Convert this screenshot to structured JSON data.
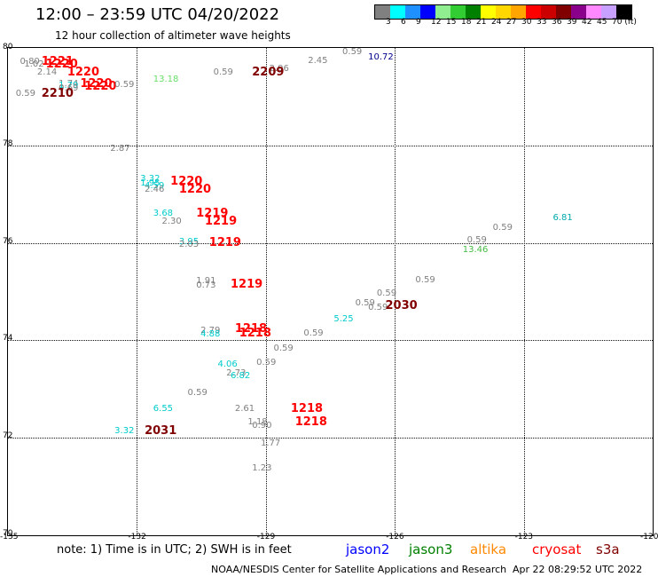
{
  "header": {
    "title": "12:00 – 23:59 UTC 04/20/2022",
    "subtitle": "12 hour collection of altimeter wave heights"
  },
  "color_scale": {
    "swatches": [
      "#808080",
      "#00ffff",
      "#1e90ff",
      "#0000ff",
      "#90ee90",
      "#32cd32",
      "#008000",
      "#ffff00",
      "#ffd700",
      "#ffa500",
      "#ff0000",
      "#cc0000",
      "#800000",
      "#8b008b",
      "#ff88ff",
      "#c8a0ff",
      "#000000"
    ],
    "tick_labels": [
      "3",
      "6",
      "9",
      "12",
      "15",
      "18",
      "21",
      "24",
      "27",
      "30",
      "33",
      "36",
      "39",
      "42",
      "45",
      "70 (ft)"
    ]
  },
  "axes": {
    "lat_labels": [
      "80",
      "78",
      "76",
      "74",
      "72",
      "70"
    ],
    "lon_labels": [
      "-135",
      "-132",
      "-129",
      "-126",
      "-123",
      "-120"
    ]
  },
  "observations": [
    {
      "text": "0.59",
      "color": "#808080",
      "lon": -127.2,
      "lat": 79.89
    },
    {
      "text": "10.72",
      "color": "#00008b",
      "lon": -126.6,
      "lat": 79.79
    },
    {
      "text": "2.45",
      "color": "#808080",
      "lon": -128.0,
      "lat": 79.7
    },
    {
      "text": "1221",
      "color": "#ff0000",
      "lon": -134.2,
      "lat": 79.69,
      "time": true
    },
    {
      "text": "1220",
      "color": "#ff0000",
      "lon": -134.1,
      "lat": 79.63,
      "time": true
    },
    {
      "text": "0.80",
      "color": "#808080",
      "lon": -134.7,
      "lat": 79.69
    },
    {
      "text": "1.02",
      "color": "#808080",
      "lon": -134.6,
      "lat": 79.63
    },
    {
      "text": "2.96",
      "color": "#808080",
      "lon": -128.9,
      "lat": 79.55
    },
    {
      "text": "2209",
      "color": "#800000",
      "lon": -129.3,
      "lat": 79.48,
      "time": true
    },
    {
      "text": "0.59",
      "color": "#808080",
      "lon": -130.2,
      "lat": 79.48
    },
    {
      "text": "2.14",
      "color": "#808080",
      "lon": -134.3,
      "lat": 79.47
    },
    {
      "text": "1220",
      "color": "#ff0000",
      "lon": -133.6,
      "lat": 79.47,
      "time": true
    },
    {
      "text": "13.18",
      "color": "#66dd66",
      "lon": -131.6,
      "lat": 79.32
    },
    {
      "text": "1.74",
      "color": "#808080",
      "lon": -133.8,
      "lat": 79.23
    },
    {
      "text": "1.79",
      "color": "#00cccc",
      "lon": -133.8,
      "lat": 79.19
    },
    {
      "text": "1220",
      "color": "#ff0000",
      "lon": -133.3,
      "lat": 79.23,
      "time": true
    },
    {
      "text": "1220",
      "color": "#ff0000",
      "lon": -133.2,
      "lat": 79.18,
      "time": true
    },
    {
      "text": "0.59",
      "color": "#808080",
      "lon": -132.5,
      "lat": 79.22
    },
    {
      "text": "0.69",
      "color": "#808080",
      "lon": -133.8,
      "lat": 79.14
    },
    {
      "text": "0.59",
      "color": "#808080",
      "lon": -134.8,
      "lat": 79.03
    },
    {
      "text": "2210",
      "color": "#800000",
      "lon": -134.2,
      "lat": 79.03,
      "time": true
    },
    {
      "text": "2.87",
      "color": "#808080",
      "lon": -132.6,
      "lat": 77.9
    },
    {
      "text": "3.32",
      "color": "#00cccc",
      "lon": -131.9,
      "lat": 77.28
    },
    {
      "text": "1.95",
      "color": "#00cccc",
      "lon": -131.9,
      "lat": 77.2
    },
    {
      "text": "4.59",
      "color": "#00cccc",
      "lon": -131.8,
      "lat": 77.14
    },
    {
      "text": "2.46",
      "color": "#808080",
      "lon": -131.8,
      "lat": 77.07
    },
    {
      "text": "1220",
      "color": "#ff0000",
      "lon": -131.2,
      "lat": 77.23,
      "time": true
    },
    {
      "text": "1220",
      "color": "#ff0000",
      "lon": -131.0,
      "lat": 77.07,
      "time": true
    },
    {
      "text": "3.68",
      "color": "#00cccc",
      "lon": -131.6,
      "lat": 76.58
    },
    {
      "text": "1219",
      "color": "#ff0000",
      "lon": -130.6,
      "lat": 76.58,
      "time": true
    },
    {
      "text": "2.30",
      "color": "#808080",
      "lon": -131.4,
      "lat": 76.41
    },
    {
      "text": "1219",
      "color": "#ff0000",
      "lon": -130.4,
      "lat": 76.41,
      "time": true
    },
    {
      "text": "3.95",
      "color": "#00cccc",
      "lon": -131.0,
      "lat": 75.99
    },
    {
      "text": "2.03",
      "color": "#808080",
      "lon": -131.0,
      "lat": 75.93
    },
    {
      "text": "1219",
      "color": "#ff0000",
      "lon": -130.3,
      "lat": 75.97,
      "time": true
    },
    {
      "text": "1.91",
      "color": "#808080",
      "lon": -130.6,
      "lat": 75.2
    },
    {
      "text": "0.73",
      "color": "#808080",
      "lon": -130.6,
      "lat": 75.1
    },
    {
      "text": "1219",
      "color": "#ff0000",
      "lon": -129.8,
      "lat": 75.11,
      "time": true
    },
    {
      "text": "0.59",
      "color": "#808080",
      "lon": -126.4,
      "lat": 74.93
    },
    {
      "text": "0.59",
      "color": "#808080",
      "lon": -125.5,
      "lat": 75.21
    },
    {
      "text": "0.59",
      "color": "#808080",
      "lon": -124.3,
      "lat": 76.03
    },
    {
      "text": "0.59",
      "color": "#808080",
      "lon": -123.7,
      "lat": 76.28
    },
    {
      "text": "13.46",
      "color": "#44bb44",
      "lon": -124.4,
      "lat": 75.83
    },
    {
      "text": "6.81",
      "color": "#00aaaa",
      "lon": -122.3,
      "lat": 76.48
    },
    {
      "text": "0.59",
      "color": "#808080",
      "lon": -126.9,
      "lat": 74.73
    },
    {
      "text": "0.59",
      "color": "#808080",
      "lon": -126.6,
      "lat": 74.65
    },
    {
      "text": "2030",
      "color": "#800000",
      "lon": -126.2,
      "lat": 74.68,
      "time": true
    },
    {
      "text": "5.25",
      "color": "#00cccc",
      "lon": -127.4,
      "lat": 74.4
    },
    {
      "text": "0.59",
      "color": "#808080",
      "lon": -128.1,
      "lat": 74.12
    },
    {
      "text": "0.59",
      "color": "#808080",
      "lon": -128.8,
      "lat": 73.81
    },
    {
      "text": "2.79",
      "color": "#808080",
      "lon": -130.5,
      "lat": 74.18
    },
    {
      "text": "4.88",
      "color": "#00cccc",
      "lon": -130.5,
      "lat": 74.09
    },
    {
      "text": "1218",
      "color": "#ff0000",
      "lon": -129.7,
      "lat": 74.2,
      "time": true
    },
    {
      "text": "1218",
      "color": "#ff0000",
      "lon": -129.6,
      "lat": 74.12,
      "time": true
    },
    {
      "text": "0.59",
      "color": "#808080",
      "lon": -129.2,
      "lat": 73.52
    },
    {
      "text": "4.06",
      "color": "#00cccc",
      "lon": -130.1,
      "lat": 73.48
    },
    {
      "text": "2.73",
      "color": "#808080",
      "lon": -129.9,
      "lat": 73.29
    },
    {
      "text": "6.82",
      "color": "#00cccc",
      "lon": -129.8,
      "lat": 73.24
    },
    {
      "text": "0.59",
      "color": "#808080",
      "lon": -130.8,
      "lat": 72.9
    },
    {
      "text": "6.55",
      "color": "#00cccc",
      "lon": -131.6,
      "lat": 72.56
    },
    {
      "text": "2.61",
      "color": "#808080",
      "lon": -129.7,
      "lat": 72.56
    },
    {
      "text": "1218",
      "color": "#ff0000",
      "lon": -128.4,
      "lat": 72.57,
      "time": true
    },
    {
      "text": "1.18",
      "color": "#808080",
      "lon": -129.4,
      "lat": 72.29
    },
    {
      "text": "0.90",
      "color": "#808080",
      "lon": -129.3,
      "lat": 72.22
    },
    {
      "text": "1218",
      "color": "#ff0000",
      "lon": -128.3,
      "lat": 72.29,
      "time": true
    },
    {
      "text": "3.32",
      "color": "#00cccc",
      "lon": -132.5,
      "lat": 72.12
    },
    {
      "text": "2031",
      "color": "#800000",
      "lon": -131.8,
      "lat": 72.12,
      "time": true
    },
    {
      "text": "1.77",
      "color": "#808080",
      "lon": -129.1,
      "lat": 71.86
    },
    {
      "text": "1.23",
      "color": "#808080",
      "lon": -129.3,
      "lat": 71.34
    }
  ],
  "footer": {
    "note": "note: 1) Time is in UTC; 2) SWH is in feet",
    "legend": [
      {
        "label": "jason2",
        "color": "#0000ff"
      },
      {
        "label": "jason3",
        "color": "#008000"
      },
      {
        "label": "altika",
        "color": "#ff8800"
      },
      {
        "label": "cryosat",
        "color": "#ff0000"
      },
      {
        "label": "s3a",
        "color": "#800000"
      }
    ],
    "credit": "NOAA/NESDIS Center for Satellite Applications and Research",
    "timestamp": "Apr 22 08:29:52 UTC 2022"
  }
}
